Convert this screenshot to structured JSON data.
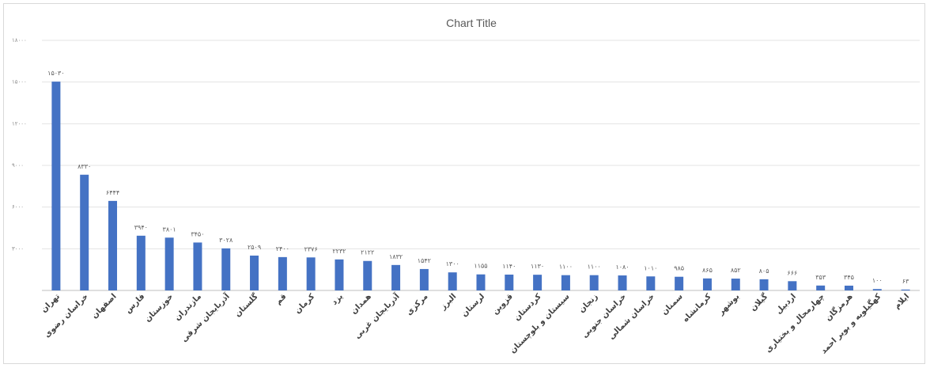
{
  "chart_data": {
    "type": "bar",
    "title": "Chart Title",
    "xlabel": "",
    "ylabel": "",
    "ylim": [
      0,
      18000
    ],
    "yticks": [
      0,
      3000,
      6000,
      9000,
      12000,
      15000,
      18000
    ],
    "ytick_labels": [
      "",
      "۳۰۰۰",
      "۶۰۰۰",
      "۹۰۰۰",
      "۱۲۰۰۰",
      "۱۵۰۰۰",
      "۱۸۰۰۰"
    ],
    "grid": true,
    "legend": "none",
    "bar_color": "#4472c4",
    "categories": [
      "تهران",
      "خراسان رضوی",
      "اصفهان",
      "فارس",
      "خوزستان",
      "مازندران",
      "آذربایجان شرقی",
      "گلستان",
      "قم",
      "کرمان",
      "یزد",
      "همدان",
      "آذربایجان غربی",
      "مرکزی",
      "البرز",
      "لرستان",
      "قزوین",
      "کردستان",
      "سیستان و بلوچستان",
      "زنجان",
      "خراسان جنوبی",
      "خراسان شمالی",
      "سمنان",
      "کرمانشاه",
      "بوشهر",
      "گیلان",
      "اردبیل",
      "چهارمحال و بختیاری",
      "هرمزگان",
      "کهگیلویه و بویر احمد",
      "ایلام"
    ],
    "values": [
      15030,
      8330,
      6444,
      3940,
      3801,
      3450,
      3028,
      2509,
      2400,
      2376,
      2232,
      2122,
      1832,
      1542,
      1300,
      1155,
      1140,
      1130,
      1100,
      1100,
      1080,
      1010,
      985,
      865,
      852,
      805,
      666,
      353,
      345,
      100,
      63
    ],
    "value_labels": [
      "۱۵۰۳۰",
      "۸۳۳۰",
      "۶۴۴۴",
      "۳۹۴۰",
      "۳۸۰۱",
      "۳۴۵۰",
      "۳۰۲۸",
      "۲۵۰۹",
      "۲۴۰۰",
      "۲۳۷۶",
      "۲۲۳۲",
      "۲۱۲۲",
      "۱۸۳۲",
      "۱۵۴۲",
      "۱۳۰۰",
      "۱۱۵۵",
      "۱۱۴۰",
      "۱۱۳۰",
      "۱۱۰۰",
      "۱۱۰۰",
      "۱۰۸۰",
      "۱۰۱۰",
      "۹۸۵",
      "۸۶۵",
      "۸۵۲",
      "۸۰۵",
      "۶۶۶",
      "۳۵۳",
      "۳۴۵",
      "۱۰۰",
      "۶۳"
    ]
  }
}
